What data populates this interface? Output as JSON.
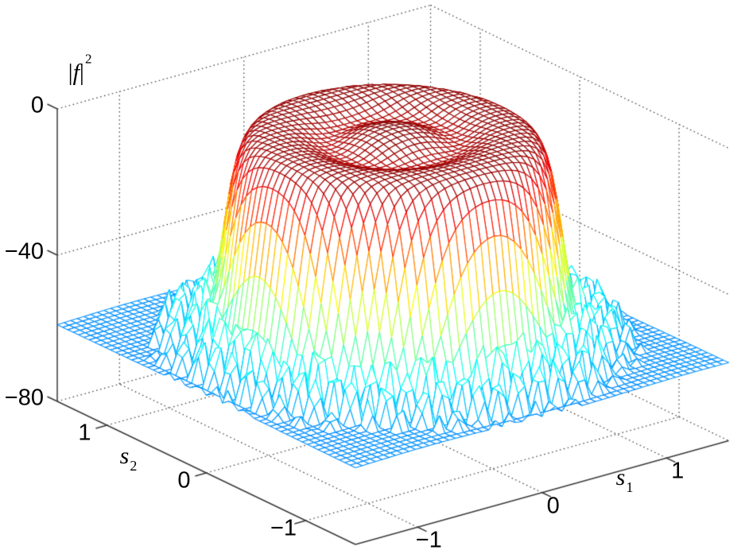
{
  "chart_data": {
    "type": "surface",
    "render": "wireframe-mesh-3d",
    "title": "",
    "description": "Squared magnitude beampattern |f|^2 in dB over direction-cosine space (s1, s2); flat-topped circular mainlobe near 0 dB with central ripple, steep skirt, and grid-like sidelobes above a -80 dB floor",
    "zlabel": {
      "open": "|",
      "symbol": "f",
      "close": "|",
      "sup": "2"
    },
    "xlabel": {
      "symbol": "s",
      "sub": "1"
    },
    "ylabel": {
      "symbol": "s",
      "sub": "2"
    },
    "x_range": [
      -1.5,
      1.5
    ],
    "y_range": [
      -1.5,
      1.5
    ],
    "z_range": [
      -80,
      0
    ],
    "z_units": "dB",
    "x_ticks": [
      -1,
      0,
      1
    ],
    "y_ticks": [
      1,
      0,
      -1
    ],
    "z_ticks": [
      0,
      -40,
      -80
    ],
    "colormap": "jet",
    "view": {
      "azimuth": -37.5,
      "elevation": 30,
      "projection": "orthographic"
    },
    "grid": {
      "style": "dotted",
      "back_walls": true,
      "floor": true
    },
    "mesh": {
      "points_per_axis": 57
    },
    "surface_model": {
      "plateau_db": -0.9,
      "center_bump_db": 0.5,
      "center_width": 0.16,
      "moat_depth_db": -3.4,
      "moat_radius": 0.4,
      "moat_width": 0.17,
      "main_radius": 1.07,
      "cliff_depth_db": 58,
      "cliff_width": 0.05,
      "sidelobe_spacing": 0.16,
      "sidelobe_far_db": -64,
      "first_ring_gain_db": 16,
      "first_ring_radius": 1.32,
      "first_ring_width": 0.25,
      "cliff_base_gain_db": 11,
      "cliff_base_radius": 1.17,
      "cliff_base_width": 0.06,
      "corner_rolloff_db": 9,
      "rolloff_start": 1.55,
      "null_sharpness": 17,
      "jitter_db": 2.5
    },
    "features": {
      "mainlobe_peak_db": -0.4,
      "mainlobe_ripple_db": -4.3,
      "first_sidelobe_db": -43,
      "far_sidelobe_db": -66,
      "floor_db": -80
    }
  },
  "labels": {
    "z_ticks": [
      "0",
      "−40",
      "−80"
    ],
    "x_ticks": [
      "−1",
      "0",
      "1"
    ],
    "y_ticks": [
      "1",
      "0",
      "−1"
    ]
  },
  "colors": {
    "background": "#ffffff",
    "axis_line": "#3a3a3a",
    "grid_dots": "#3c3c3c",
    "text": "#000000",
    "mesh_face": "#ffffff"
  }
}
